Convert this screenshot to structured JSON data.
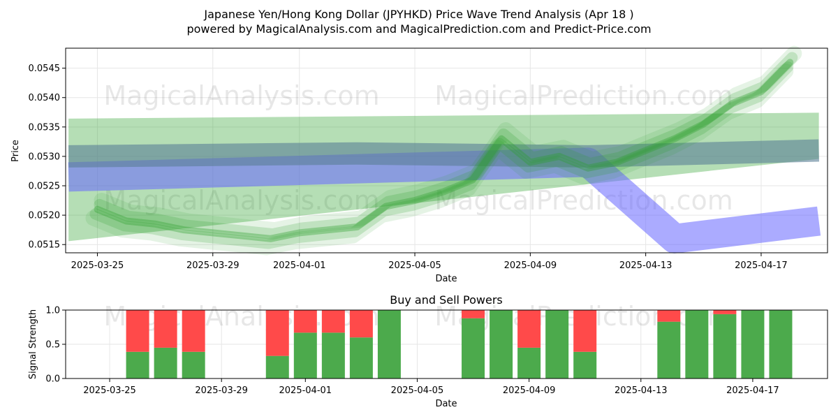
{
  "title": "Japanese Yen/Hong Kong Dollar (JPYHKD) Price Wave Trend Analysis (Apr 18 )",
  "subtitle": "powered by MagicalAnalysis.com and MagicalPrediction.com and Predict-Price.com",
  "watermarks": [
    "MagicalAnalysis.com",
    "MagicalPrediction.com"
  ],
  "colors": {
    "green_band": "#2ca02c",
    "blue_band": "#6666ff",
    "slate_band": "#5a7f96",
    "buy": "#4caa4c",
    "sell": "#ff4a4a"
  },
  "chart_data": [
    {
      "type": "area",
      "title": "",
      "xlabel": "Date",
      "ylabel": "Price",
      "x_ticks": [
        "2025-03-25",
        "2025-03-29",
        "2025-04-01",
        "2025-04-05",
        "2025-04-09",
        "2025-04-13",
        "2025-04-17"
      ],
      "y_ticks": [
        "0.0515",
        "0.0520",
        "0.0525",
        "0.0530",
        "0.0535",
        "0.0540",
        "0.0545"
      ],
      "xlim": [
        "2025-03-23.9",
        "2025-04-19.3"
      ],
      "ylim": [
        0.05136,
        0.05484
      ],
      "grid": true,
      "series": [
        {
          "kind": "green-wave",
          "x": [
            "2025-03-25",
            "2025-03-26",
            "2025-03-27",
            "2025-03-28",
            "2025-03-29",
            "2025-03-30",
            "2025-03-31",
            "2025-04-01",
            "2025-04-02",
            "2025-04-03",
            "2025-04-04",
            "2025-04-05",
            "2025-04-06",
            "2025-04-07",
            "2025-04-08",
            "2025-04-09",
            "2025-04-10",
            "2025-04-11",
            "2025-04-12",
            "2025-04-13",
            "2025-04-14",
            "2025-04-15",
            "2025-04-16",
            "2025-04-17",
            "2025-04-18"
          ],
          "values": [
            0.0521,
            0.0519,
            0.05185,
            0.05175,
            0.0517,
            0.05165,
            0.0516,
            0.0517,
            0.05175,
            0.0518,
            0.05215,
            0.05225,
            0.0524,
            0.0526,
            0.0533,
            0.0529,
            0.053,
            0.0528,
            0.0529,
            0.0531,
            0.0533,
            0.05355,
            0.0539,
            0.0541,
            0.0546
          ]
        },
        {
          "kind": "green-band-upper",
          "x": [
            "2025-03-24",
            "2025-04-19"
          ],
          "values": [
            0.0535,
            0.0536
          ]
        },
        {
          "kind": "green-band-lower",
          "x": [
            "2025-03-24",
            "2025-04-19"
          ],
          "values": [
            0.0517,
            0.0531
          ]
        },
        {
          "kind": "blue-band",
          "x": [
            "2025-03-24",
            "2025-04-11",
            "2025-04-14",
            "2025-04-19"
          ],
          "values": [
            0.05265,
            0.0529,
            0.0516,
            0.0519
          ]
        },
        {
          "kind": "slate-band",
          "x": [
            "2025-03-24",
            "2025-04-03",
            "2025-04-11",
            "2025-04-19"
          ],
          "values": [
            0.053,
            0.05305,
            0.053,
            0.0531
          ]
        }
      ]
    },
    {
      "type": "bar",
      "title": "Buy and Sell Powers",
      "xlabel": "Date",
      "ylabel": "Signal Strength",
      "x_ticks": [
        "2025-03-25",
        "2025-03-29",
        "2025-04-01",
        "2025-04-05",
        "2025-04-09",
        "2025-04-13",
        "2025-04-17"
      ],
      "y_ticks": [
        "0.0",
        "0.5",
        "1.0"
      ],
      "ylim": [
        0,
        1
      ],
      "categories": [
        "2025-03-26",
        "2025-03-27",
        "2025-03-28",
        "2025-03-31",
        "2025-04-01",
        "2025-04-02",
        "2025-04-03",
        "2025-04-04",
        "2025-04-07",
        "2025-04-08",
        "2025-04-09",
        "2025-04-10",
        "2025-04-11",
        "2025-04-14",
        "2025-04-15",
        "2025-04-16",
        "2025-04-17",
        "2025-04-18"
      ],
      "series": [
        {
          "name": "Buy",
          "values": [
            0.39,
            0.45,
            0.39,
            0.33,
            0.67,
            0.67,
            0.6,
            1.0,
            0.88,
            1.0,
            0.45,
            1.0,
            0.39,
            0.83,
            1.0,
            0.94,
            1.0,
            1.0
          ]
        },
        {
          "name": "Sell",
          "values": [
            0.61,
            0.55,
            0.61,
            0.67,
            0.33,
            0.33,
            0.4,
            0.0,
            0.12,
            0.0,
            0.55,
            0.0,
            0.61,
            0.17,
            0.0,
            0.06,
            0.0,
            0.0
          ]
        }
      ]
    }
  ]
}
